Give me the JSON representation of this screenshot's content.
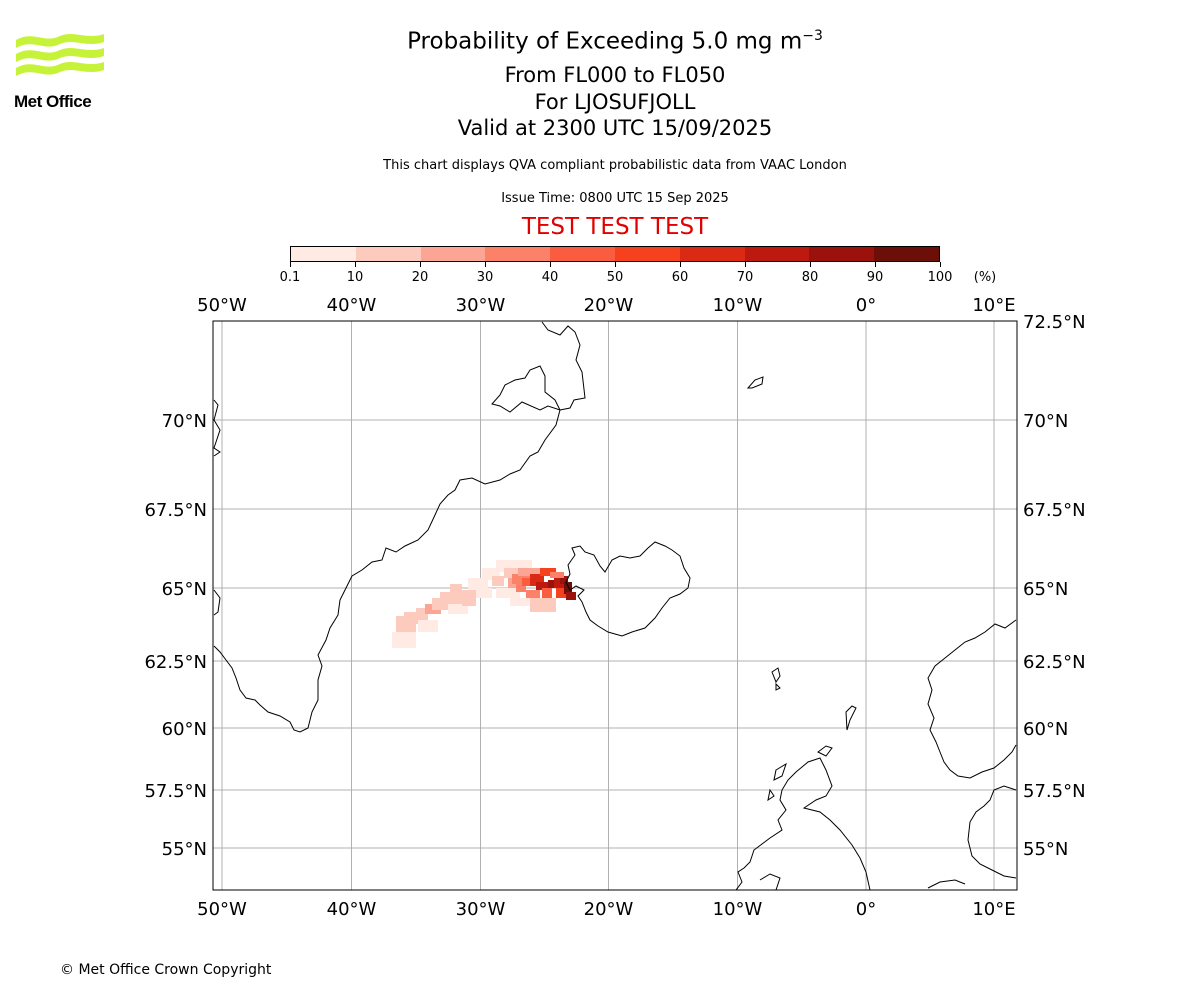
{
  "header": {
    "title_main": "Probability of Exceeding 5.0 mg m",
    "title_sup": "−3",
    "flight_levels": "From FL000 to FL050",
    "volcano": "For LJOSUFJOLL",
    "valid_time": "Valid at 2300 UTC 15/09/2025",
    "description": "This chart displays QVA compliant probabilistic data from VAAC London",
    "issue_time": "Issue Time: 0800 UTC 15 Sep 2025",
    "test_banner": "TEST TEST TEST"
  },
  "logo": {
    "text": "Met Office",
    "color": "#c6f23a"
  },
  "colorbar": {
    "tick_labels": [
      "0.1",
      "10",
      "20",
      "30",
      "40",
      "50",
      "60",
      "70",
      "80",
      "90",
      "100"
    ],
    "unit_label": "(%)",
    "colors": [
      "#ffeae4",
      "#fdcbbd",
      "#fca594",
      "#fc8169",
      "#fa5c3f",
      "#f5411e",
      "#da2a14",
      "#bc1a0e",
      "#9a120b",
      "#6c0f08"
    ]
  },
  "map": {
    "lon_labels": [
      "50°W",
      "40°W",
      "30°W",
      "20°W",
      "10°W",
      "0°",
      "10°E"
    ],
    "lat_labels_left": [
      "70°N",
      "67.5°N",
      "65°N",
      "62.5°N",
      "60°N",
      "57.5°N",
      "55°N"
    ],
    "lat_labels_right": [
      "72.5°N",
      "70°N",
      "67.5°N",
      "65°N",
      "62.5°N",
      "60°N",
      "57.5°N",
      "55°N"
    ],
    "plume": {
      "description_values": "probability of exceeding threshold in percent",
      "max_band": "90-100",
      "centre_label": "LJOSUFJOLL"
    }
  },
  "footer": {
    "copyright": "© Met Office Crown Copyright"
  }
}
